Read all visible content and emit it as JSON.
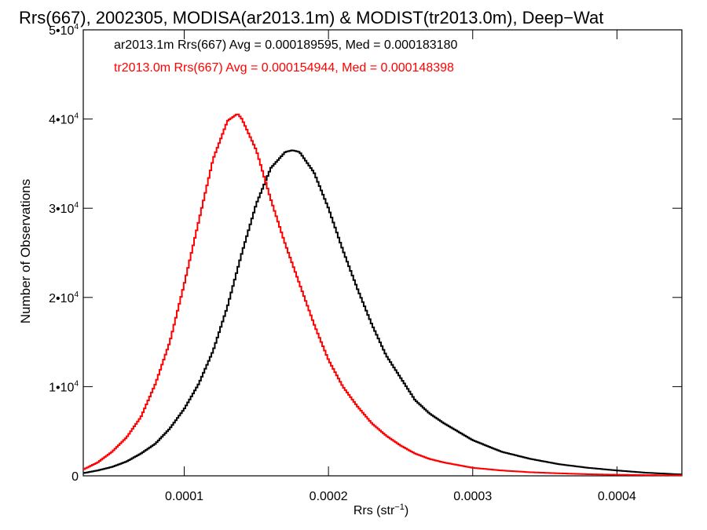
{
  "chart_data": {
    "type": "line",
    "title": "Rrs(667), 2002305, MODISA(ar2013.1m) & MODIST(tr2013.0m), Deep−Wat",
    "xlabel_main": "Rrs (str",
    "xlabel_sup": "−1",
    "xlabel_close": ")",
    "ylabel": "Number of Observations",
    "xlim": [
      3e-05,
      0.000445
    ],
    "ylim": [
      0,
      50000
    ],
    "x_ticks": [
      {
        "value": 0.0001,
        "label": "0.0001"
      },
      {
        "value": 0.0002,
        "label": "0.0002"
      },
      {
        "value": 0.0003,
        "label": "0.0003"
      },
      {
        "value": 0.0004,
        "label": "0.0004"
      }
    ],
    "y_ticks": [
      {
        "value": 0,
        "base": "0",
        "exp": ""
      },
      {
        "value": 10000,
        "base": "1•10",
        "exp": "4"
      },
      {
        "value": 20000,
        "base": "2•10",
        "exp": "4"
      },
      {
        "value": 30000,
        "base": "3•10",
        "exp": "4"
      },
      {
        "value": 40000,
        "base": "4•10",
        "exp": "4"
      },
      {
        "value": 50000,
        "base": "5•10",
        "exp": "4"
      }
    ],
    "grid": false,
    "legend_position": "top-left",
    "series": [
      {
        "name": "ar2013.1m Rrs(667) Avg = 0.000189595, Med = 0.000183180",
        "color": "#000000",
        "x": [
          3e-05,
          4e-05,
          5e-05,
          6e-05,
          7e-05,
          8e-05,
          9e-05,
          0.0001,
          0.00011,
          0.00012,
          0.00013,
          0.00014,
          0.00015,
          0.00016,
          0.00017,
          0.000175,
          0.00018,
          0.00019,
          0.0002,
          0.00021,
          0.00022,
          0.00023,
          0.00024,
          0.00025,
          0.00026,
          0.00027,
          0.00028,
          0.0003,
          0.00032,
          0.00034,
          0.00036,
          0.00038,
          0.0004,
          0.00042,
          0.000445
        ],
        "y": [
          300,
          600,
          1000,
          1600,
          2500,
          3600,
          5300,
          7500,
          10300,
          14000,
          19000,
          25000,
          30500,
          34500,
          36300,
          36500,
          36300,
          34000,
          30000,
          25300,
          21000,
          17000,
          13500,
          11000,
          8500,
          7000,
          5900,
          4000,
          2700,
          1900,
          1300,
          900,
          600,
          350,
          150
        ]
      },
      {
        "name": "tr2013.0m Rrs(667) Avg = 0.000154944, Med = 0.000148398",
        "color": "#ff0000",
        "x": [
          3e-05,
          4e-05,
          5e-05,
          6e-05,
          7e-05,
          8e-05,
          9e-05,
          0.0001,
          0.00011,
          0.00012,
          0.00013,
          0.000137,
          0.00014,
          0.00015,
          0.00016,
          0.00017,
          0.00018,
          0.00019,
          0.0002,
          0.00021,
          0.00022,
          0.00023,
          0.00024,
          0.00025,
          0.00026,
          0.00027,
          0.00028,
          0.0003,
          0.00032,
          0.00034,
          0.00036,
          0.00038,
          0.0004,
          0.00042,
          0.000445
        ],
        "y": [
          700,
          1500,
          2700,
          4300,
          6600,
          10300,
          15000,
          21500,
          28500,
          35500,
          39800,
          40600,
          40000,
          36500,
          31000,
          26000,
          21500,
          17000,
          13000,
          10000,
          7800,
          5900,
          4500,
          3400,
          2500,
          1900,
          1500,
          900,
          600,
          400,
          280,
          180,
          120,
          80,
          50
        ]
      }
    ]
  }
}
